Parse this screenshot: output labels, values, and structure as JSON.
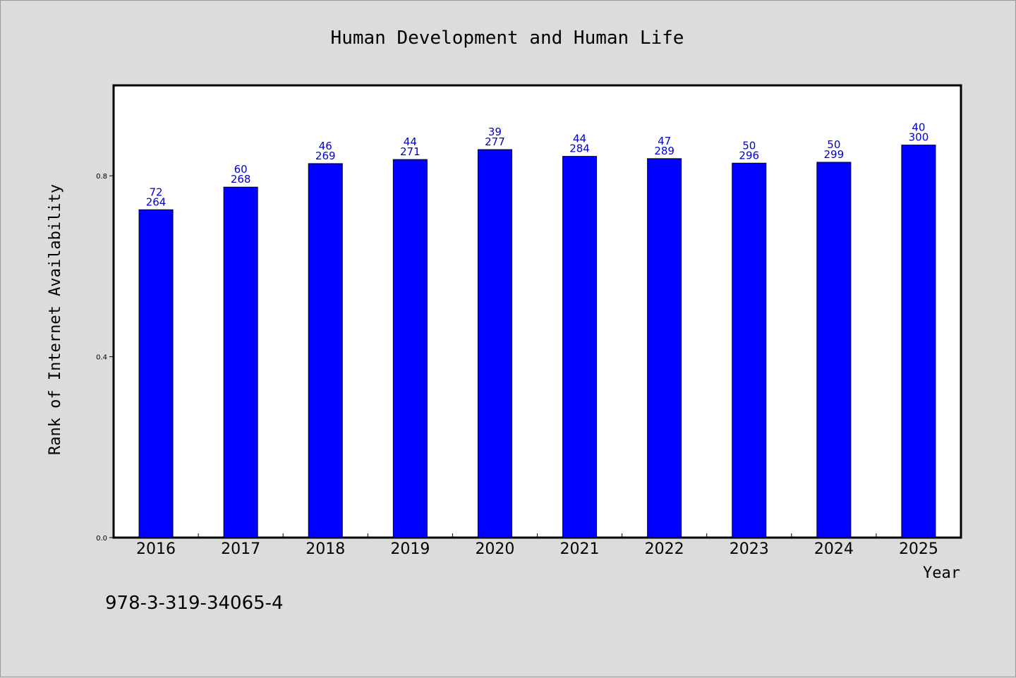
{
  "chart_data": {
    "type": "bar",
    "title": "Human Development and Human Life",
    "xlabel": "Year",
    "ylabel": "Rank of Internet Availability",
    "categories": [
      "2016",
      "2017",
      "2018",
      "2019",
      "2020",
      "2021",
      "2022",
      "2023",
      "2024",
      "2025"
    ],
    "values": [
      0.725,
      0.775,
      0.827,
      0.836,
      0.858,
      0.843,
      0.838,
      0.828,
      0.83,
      0.868
    ],
    "data_labels": [
      {
        "top": "72",
        "bottom": "264"
      },
      {
        "top": "60",
        "bottom": "268"
      },
      {
        "top": "46",
        "bottom": "269"
      },
      {
        "top": "44",
        "bottom": "271"
      },
      {
        "top": "39",
        "bottom": "277"
      },
      {
        "top": "44",
        "bottom": "284"
      },
      {
        "top": "47",
        "bottom": "289"
      },
      {
        "top": "50",
        "bottom": "296"
      },
      {
        "top": "50",
        "bottom": "299"
      },
      {
        "top": "40",
        "bottom": "300"
      }
    ],
    "ylim": [
      0,
      1.0
    ],
    "yticks": [
      0.0,
      0.4,
      0.8
    ],
    "ytick_labels": [
      "0.0",
      "0.4",
      "0.8"
    ],
    "grid": false,
    "bar_color": "#0000ff",
    "label_color": "#0000cc",
    "plot_background": "#ffffff",
    "figure_background": "#dcdcdc"
  },
  "footnote": "978-3-319-34065-4"
}
